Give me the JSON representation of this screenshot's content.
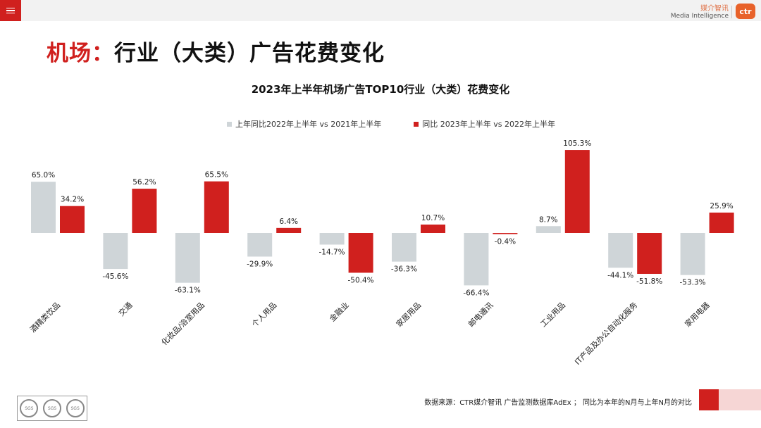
{
  "header": {
    "brand_cn": "媒介智讯",
    "brand_en": "Media Intelligence",
    "logo_text": "ctr"
  },
  "page_title": {
    "accent": "机场：",
    "rest": "行业（大类）广告花费变化"
  },
  "colors": {
    "series_2022": "#cfd5d8",
    "series_2023": "#d0201e",
    "accent": "#d0201e"
  },
  "chart_data": {
    "type": "bar",
    "title": "2023年上半年机场广告TOP10行业（大类）花费变化",
    "categories": [
      "酒精类饮品",
      "交通",
      "化妆品/浴室用品",
      "个人用品",
      "金融业",
      "家居用品",
      "邮电通讯",
      "工业用品",
      "IT产品及办公自动化服务",
      "家用电器"
    ],
    "series": [
      {
        "name": "上年同比2022年上半年  vs  2021年上半年",
        "values": [
          65.0,
          -45.6,
          -63.1,
          -29.9,
          -14.7,
          -36.3,
          -66.4,
          8.7,
          -44.1,
          -53.3
        ]
      },
      {
        "name": "同比 2023年上半年  vs  2022年上半年",
        "values": [
          34.2,
          56.2,
          65.5,
          6.4,
          -50.4,
          10.7,
          -0.4,
          105.3,
          -51.8,
          25.9
        ]
      }
    ],
    "value_labels": [
      [
        "65.0%",
        "-45.6%",
        "-63.1%",
        "-29.9%",
        "-14.7%",
        "-36.3%",
        "-66.4%",
        "8.7%",
        "-44.1%",
        "-53.3%"
      ],
      [
        "34.2%",
        "56.2%",
        "65.5%",
        "6.4%",
        "-50.4%",
        "10.7%",
        "-0.4%",
        "105.3%",
        "-51.8%",
        "25.9%"
      ]
    ],
    "legend_position": "top",
    "grid": false
  },
  "footer": {
    "source": "数据来源：CTR媒介智讯 广告监测数据库AdEx ；  同比为本年的N月与上年N月的对比",
    "cert_label": "SGS"
  }
}
